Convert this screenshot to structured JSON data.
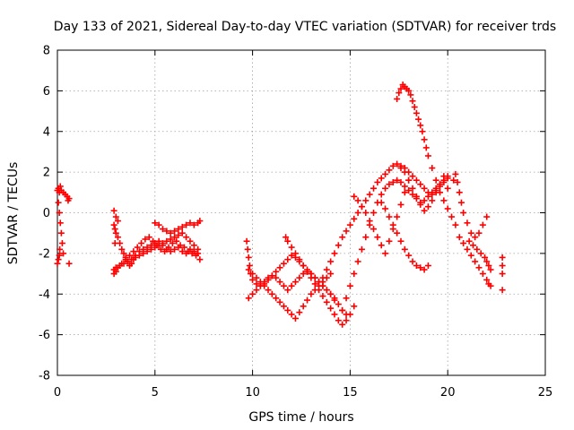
{
  "chart_data": {
    "type": "scatter",
    "title": "Day 133 of 2021, Sidereal Day-to-day VTEC variation (SDTVAR) for receiver trds",
    "xlabel": "GPS time / hours",
    "ylabel": "SDTVAR / TECUs",
    "xlim": [
      0,
      25
    ],
    "ylim": [
      -8,
      8
    ],
    "xticks": [
      "0",
      "5",
      "10",
      "15",
      "20",
      "25"
    ],
    "yticks": [
      "-8",
      "-6",
      "-4",
      "-2",
      "0",
      "2",
      "4",
      "6",
      "8"
    ],
    "grid": true,
    "legend": "none",
    "marker": "plus",
    "color": "#ff0000",
    "series": [
      {
        "x": [
          0.0,
          0.05,
          0.1,
          0.15,
          0.2,
          0.3,
          0.4,
          0.5,
          0.55,
          0.6,
          0.05,
          0.1,
          0.15,
          0.2,
          0.25,
          0.3,
          0.0,
          0.05,
          0.1,
          0.12,
          0.6,
          2.9,
          2.95,
          3.0,
          3.1,
          3.2,
          3.3,
          3.4,
          3.5,
          3.6,
          3.7,
          3.8,
          3.9,
          4.0,
          4.2,
          4.4,
          4.6,
          4.8,
          5.0,
          5.2,
          5.4,
          5.6,
          5.8,
          6.0,
          6.2,
          6.4,
          6.6,
          6.8,
          7.0,
          7.2,
          2.9,
          3.0,
          3.2,
          3.4,
          3.6,
          3.8,
          4.0,
          4.2,
          4.4,
          4.6,
          4.8,
          5.0,
          5.2,
          5.4,
          5.6,
          5.8,
          6.0,
          6.2,
          6.4,
          6.6,
          6.8,
          7.0,
          7.2,
          2.9,
          3.0,
          3.1,
          3.3,
          3.5,
          3.7,
          3.9,
          4.1,
          4.3,
          4.5,
          4.7,
          4.9,
          5.1,
          5.3,
          5.5,
          5.7,
          5.9,
          6.1,
          6.3,
          6.5,
          6.7,
          6.9,
          7.1,
          7.3,
          2.9,
          3.0,
          3.1,
          2.95,
          5.0,
          5.2,
          5.4,
          5.6,
          5.8,
          6.0,
          6.2,
          6.4,
          6.6,
          6.8,
          7.0,
          7.2,
          7.3,
          9.7,
          9.75,
          9.8,
          9.85,
          9.9,
          10.0,
          10.2,
          10.4,
          10.6,
          10.8,
          11.0,
          11.2,
          11.4,
          11.6,
          11.8,
          12.0,
          12.2,
          12.4,
          12.6,
          12.8,
          13.0,
          13.2,
          13.4,
          13.6,
          13.8,
          14.0,
          14.2,
          14.4,
          14.6,
          14.8,
          9.8,
          10.0,
          10.2,
          10.4,
          10.6,
          10.8,
          11.0,
          11.2,
          11.4,
          11.6,
          11.8,
          12.0,
          12.2,
          12.4,
          12.6,
          12.8,
          13.0,
          13.2,
          13.4,
          13.6,
          13.8,
          14.0,
          9.8,
          10.0,
          10.2,
          10.4,
          10.6,
          10.8,
          11.0,
          11.2,
          11.4,
          11.6,
          11.8,
          12.0,
          12.2,
          12.4,
          12.6,
          12.8,
          13.0,
          13.2,
          13.4,
          13.6,
          13.8,
          14.0,
          14.2,
          11.7,
          11.8,
          12.0,
          12.2,
          12.4,
          12.6,
          12.8,
          13.0,
          13.2,
          13.4,
          13.6,
          13.8,
          14.0,
          14.2,
          14.4,
          14.6,
          14.8,
          15.0,
          15.2,
          13.6,
          13.8,
          14.0,
          14.2,
          14.4,
          14.6,
          14.8,
          15.0,
          15.2,
          15.4,
          15.6,
          15.8,
          16.0,
          16.2,
          16.4,
          16.6,
          16.8,
          17.0,
          17.2,
          17.4,
          17.6,
          17.8,
          18.0,
          18.2,
          18.4,
          18.6,
          18.8,
          19.0,
          19.2,
          19.4,
          19.6,
          19.8,
          20.0,
          14.6,
          14.8,
          15.0,
          15.2,
          15.4,
          15.6,
          15.8,
          16.0,
          16.2,
          16.4,
          16.6,
          16.8,
          17.0,
          17.2,
          17.4,
          17.6,
          17.8,
          18.0,
          18.2,
          18.4,
          18.6,
          18.8,
          19.0,
          19.2,
          19.4,
          19.6,
          19.8,
          20.0,
          15.2,
          15.4,
          15.6,
          15.8,
          16.0,
          16.2,
          16.4,
          16.6,
          16.8,
          17.0,
          17.2,
          17.4,
          17.6,
          17.8,
          18.0,
          16.6,
          16.8,
          17.0,
          17.2,
          17.4,
          17.6,
          17.8,
          18.0,
          18.2,
          18.4,
          18.6,
          18.8,
          19.0,
          17.4,
          17.5,
          17.6,
          17.7,
          17.8,
          17.9,
          18.0,
          18.1,
          18.2,
          18.3,
          18.4,
          18.5,
          18.6,
          18.7,
          18.8,
          18.9,
          19.0,
          19.2,
          19.4,
          19.6,
          19.8,
          20.0,
          20.2,
          20.4,
          17.6,
          17.8,
          18.0,
          18.2,
          18.4,
          18.6,
          18.8,
          19.0,
          19.2,
          19.4,
          19.6,
          19.8,
          20.0,
          20.3,
          20.4,
          20.5,
          20.6,
          20.7,
          20.8,
          21.0,
          21.2,
          21.4,
          21.6,
          21.8,
          22.0,
          20.6,
          20.8,
          21.0,
          21.2,
          21.4,
          21.6,
          21.8,
          22.0,
          22.1,
          22.2,
          21.1,
          21.3,
          21.5,
          21.7,
          21.9,
          22.0,
          22.1,
          22.2,
          22.8,
          22.8,
          22.8,
          22.8
        ],
        "y": [
          1.1,
          1.2,
          1.0,
          1.3,
          1.1,
          1.0,
          0.9,
          0.8,
          0.6,
          0.7,
          0.5,
          0.0,
          -0.5,
          -1.0,
          -1.5,
          -2.0,
          -2.5,
          -2.3,
          -2.1,
          -1.8,
          -2.5,
          -0.6,
          -0.8,
          -1.0,
          -1.2,
          -1.5,
          -1.8,
          -2.0,
          -2.2,
          -2.4,
          -2.6,
          -2.5,
          -2.3,
          -2.1,
          -1.9,
          -1.8,
          -1.7,
          -1.6,
          -1.5,
          -1.4,
          -1.6,
          -1.8,
          -1.9,
          -1.8,
          -1.7,
          -1.9,
          -2.0,
          -1.8,
          -1.9,
          -2.0,
          -2.8,
          -2.7,
          -2.6,
          -2.5,
          -2.4,
          -2.3,
          -2.2,
          -2.1,
          -2.0,
          -1.9,
          -1.8,
          -1.7,
          -1.6,
          -1.5,
          -1.4,
          -1.3,
          -1.2,
          -1.1,
          -1.0,
          -1.2,
          -1.4,
          -1.6,
          -1.8,
          -3.0,
          -2.9,
          -2.7,
          -2.5,
          -2.3,
          -2.1,
          -1.9,
          -1.7,
          -1.5,
          -1.3,
          -1.2,
          -1.4,
          -1.6,
          -1.8,
          -1.9,
          -1.7,
          -1.5,
          -1.4,
          -1.6,
          -1.7,
          -1.9,
          -2.0,
          -2.1,
          -2.3,
          0.1,
          -0.2,
          -0.4,
          -1.5,
          -0.5,
          -0.6,
          -0.8,
          -0.9,
          -1.0,
          -0.9,
          -0.8,
          -0.7,
          -0.6,
          -0.5,
          -0.6,
          -0.5,
          -0.4,
          -1.4,
          -1.8,
          -2.2,
          -2.6,
          -3.0,
          -3.3,
          -3.5,
          -3.6,
          -3.5,
          -3.3,
          -3.1,
          -2.9,
          -2.7,
          -2.5,
          -2.3,
          -2.1,
          -2.2,
          -2.4,
          -2.6,
          -2.8,
          -3.0,
          -3.2,
          -3.4,
          -3.6,
          -3.8,
          -4.0,
          -4.2,
          -4.5,
          -4.8,
          -5.0,
          -2.8,
          -3.0,
          -3.2,
          -3.4,
          -3.6,
          -3.8,
          -4.0,
          -4.2,
          -4.4,
          -4.6,
          -4.8,
          -5.0,
          -5.2,
          -4.9,
          -4.6,
          -4.3,
          -4.0,
          -3.8,
          -3.6,
          -3.4,
          -3.2,
          -3.0,
          -4.2,
          -4.0,
          -3.8,
          -3.6,
          -3.4,
          -3.2,
          -3.1,
          -3.2,
          -3.4,
          -3.6,
          -3.8,
          -3.6,
          -3.4,
          -3.2,
          -3.0,
          -2.9,
          -3.0,
          -3.2,
          -3.4,
          -3.6,
          -3.8,
          -4.0,
          -4.3,
          -1.2,
          -1.4,
          -1.7,
          -2.0,
          -2.3,
          -2.6,
          -2.9,
          -3.2,
          -3.5,
          -3.8,
          -4.1,
          -4.4,
          -4.7,
          -5.0,
          -5.3,
          -5.5,
          -5.3,
          -5.0,
          -4.6,
          -3.2,
          -2.8,
          -2.4,
          -2.0,
          -1.6,
          -1.2,
          -0.9,
          -0.6,
          -0.3,
          0.0,
          0.3,
          0.6,
          0.9,
          1.2,
          1.5,
          1.7,
          1.9,
          2.1,
          2.3,
          2.4,
          2.3,
          2.2,
          2.0,
          1.8,
          1.6,
          1.4,
          1.2,
          1.0,
          0.9,
          1.1,
          1.3,
          1.5,
          1.7,
          -4.8,
          -4.2,
          -3.6,
          -3.0,
          -2.4,
          -1.8,
          -1.2,
          -0.6,
          0.0,
          0.5,
          0.9,
          1.2,
          1.4,
          1.5,
          1.6,
          1.5,
          1.3,
          1.1,
          0.9,
          0.7,
          0.5,
          0.6,
          0.8,
          1.0,
          1.2,
          1.4,
          1.6,
          1.8,
          0.8,
          0.6,
          0.3,
          0.0,
          -0.4,
          -0.8,
          -1.2,
          -1.6,
          -2.0,
          -1.4,
          -0.8,
          -0.2,
          0.4,
          1.0,
          1.6,
          0.5,
          0.2,
          -0.2,
          -0.6,
          -1.0,
          -1.4,
          -1.8,
          -2.1,
          -2.4,
          -2.6,
          -2.7,
          -2.8,
          -2.6,
          5.6,
          5.9,
          6.1,
          6.3,
          6.2,
          6.1,
          6.0,
          5.8,
          5.5,
          5.2,
          4.9,
          4.6,
          4.3,
          4.0,
          3.6,
          3.2,
          2.8,
          2.2,
          1.6,
          1.0,
          0.6,
          0.2,
          -0.2,
          -0.6,
          2.2,
          2.0,
          1.6,
          1.2,
          0.8,
          0.4,
          0.1,
          0.3,
          0.6,
          1.0,
          1.4,
          1.8,
          1.2,
          1.6,
          1.9,
          1.5,
          1.0,
          0.5,
          0.0,
          -0.5,
          -1.0,
          -1.2,
          -1.0,
          -0.6,
          -0.2,
          -1.2,
          -1.5,
          -1.8,
          -2.1,
          -2.4,
          -2.7,
          -3.0,
          -3.3,
          -3.5,
          -3.6,
          -1.4,
          -1.6,
          -1.8,
          -2.0,
          -2.2,
          -2.4,
          -2.6,
          -2.8,
          -2.2,
          -2.6,
          -3.0,
          -3.8
        ]
      }
    ]
  }
}
